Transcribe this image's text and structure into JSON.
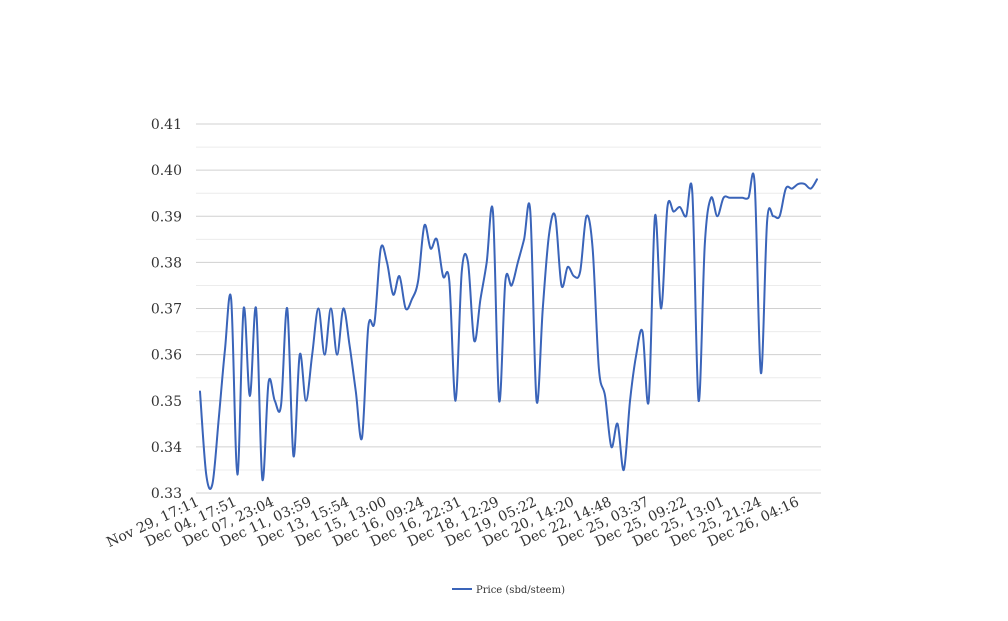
{
  "chart_data": {
    "type": "line",
    "title": "",
    "xlabel": "",
    "ylabel": "",
    "ylim": [
      0.33,
      0.41
    ],
    "y_ticks": [
      "0.33",
      "0.34",
      "0.35",
      "0.36",
      "0.37",
      "0.38",
      "0.39",
      "0.40",
      "0.41"
    ],
    "grid": true,
    "legend_position": "bottom",
    "x_tick_labels": [
      "Nov 29, 17:11",
      "Dec 04, 17:51",
      "Dec 07, 23:04",
      "Dec 11, 03:59",
      "Dec 13, 15:54",
      "Dec 15, 13:00",
      "Dec 16, 09:24",
      "Dec 16, 22:31",
      "Dec 18, 12:29",
      "Dec 19, 05:22",
      "Dec 20, 14:20",
      "Dec 22, 14:48",
      "Dec 25, 03:37",
      "Dec 25, 09:22",
      "Dec 25, 13:01",
      "Dec 25, 21:24",
      "Dec 26, 04:16"
    ],
    "series": [
      {
        "name": "Price (sbd/steem)",
        "color": "#3a64b9",
        "values": [
          0.352,
          0.334,
          0.332,
          0.346,
          0.361,
          0.372,
          0.334,
          0.37,
          0.351,
          0.37,
          0.333,
          0.354,
          0.35,
          0.349,
          0.37,
          0.338,
          0.36,
          0.35,
          0.36,
          0.37,
          0.36,
          0.37,
          0.36,
          0.37,
          0.362,
          0.352,
          0.342,
          0.366,
          0.367,
          0.383,
          0.38,
          0.373,
          0.377,
          0.37,
          0.372,
          0.376,
          0.388,
          0.383,
          0.385,
          0.377,
          0.376,
          0.35,
          0.378,
          0.38,
          0.363,
          0.372,
          0.38,
          0.391,
          0.35,
          0.376,
          0.375,
          0.38,
          0.385,
          0.391,
          0.35,
          0.37,
          0.386,
          0.39,
          0.375,
          0.379,
          0.377,
          0.378,
          0.39,
          0.383,
          0.357,
          0.351,
          0.34,
          0.345,
          0.335,
          0.35,
          0.36,
          0.365,
          0.35,
          0.39,
          0.37,
          0.392,
          0.391,
          0.392,
          0.39,
          0.395,
          0.35,
          0.384,
          0.394,
          0.39,
          0.394,
          0.394,
          0.394,
          0.394,
          0.394,
          0.397,
          0.356,
          0.389,
          0.39,
          0.39,
          0.396,
          0.396,
          0.397,
          0.397,
          0.396,
          0.398
        ]
      }
    ]
  }
}
